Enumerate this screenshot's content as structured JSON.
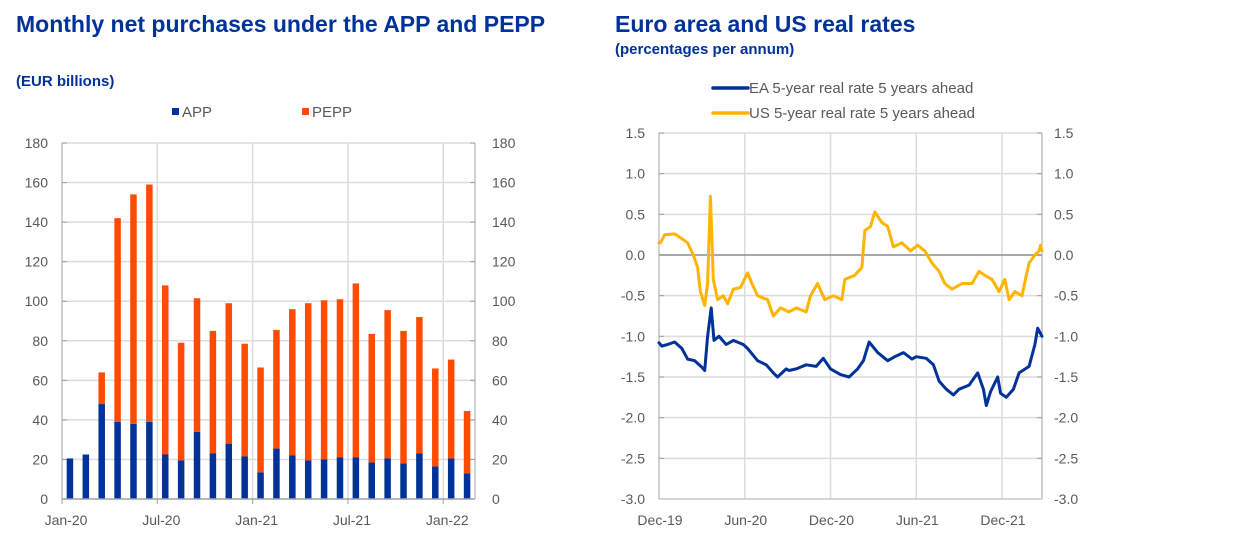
{
  "chart_data": [
    {
      "type": "bar",
      "stacked": true,
      "title": "Monthly net purchases under the APP and PEPP",
      "subtitle": "(EUR billions)",
      "xlabel": "",
      "ylabel": "",
      "ylim": [
        0,
        180
      ],
      "yticks": [
        0,
        20,
        40,
        60,
        80,
        100,
        120,
        140,
        160,
        180
      ],
      "ytick_labels": [
        "0",
        "20",
        "40",
        "60",
        "80",
        "100",
        "120",
        "140",
        "160",
        "180"
      ],
      "secondary_y_axis": true,
      "grid": true,
      "legend_position": "top",
      "categories": [
        "Jan-20",
        "Feb-20",
        "Mar-20",
        "Apr-20",
        "May-20",
        "Jun-20",
        "Jul-20",
        "Aug-20",
        "Sep-20",
        "Oct-20",
        "Nov-20",
        "Dec-20",
        "Jan-21",
        "Feb-21",
        "Mar-21",
        "Apr-21",
        "May-21",
        "Jun-21",
        "Jul-21",
        "Aug-21",
        "Sep-21",
        "Oct-21",
        "Nov-21",
        "Dec-21",
        "Jan-22",
        "Feb-22"
      ],
      "xtick_labels": [
        {
          "index": 0,
          "label": "Jan-20"
        },
        {
          "index": 6,
          "label": "Jul-20"
        },
        {
          "index": 12,
          "label": "Jan-21"
        },
        {
          "index": 18,
          "label": "Jul-21"
        },
        {
          "index": 24,
          "label": "Jan-22"
        }
      ],
      "series": [
        {
          "name": "APP",
          "color": "#003299",
          "values": [
            20.5,
            22.5,
            48,
            39,
            38,
            39,
            22.5,
            19.5,
            34,
            23,
            28,
            21.5,
            13.5,
            25.5,
            22,
            19.5,
            20,
            21,
            21,
            18.5,
            20.5,
            18,
            23,
            16.5,
            20.5,
            13
          ]
        },
        {
          "name": "PEPP",
          "color": "#FF4B00",
          "values": [
            0,
            0,
            16,
            103,
            116,
            120,
            85.5,
            59.5,
            67.5,
            62,
            71,
            57,
            53,
            60,
            74,
            79.5,
            80.5,
            80,
            88,
            65,
            75,
            67,
            69,
            49.5,
            50,
            31.5
          ]
        }
      ]
    },
    {
      "type": "line",
      "title": "Euro area and US real rates",
      "subtitle": "(percentages per annum)",
      "xlabel": "",
      "ylabel": "",
      "ylim": [
        -3.0,
        1.5
      ],
      "yticks": [
        -3.0,
        -2.5,
        -2.0,
        -1.5,
        -1.0,
        -0.5,
        0.0,
        0.5,
        1.0,
        1.5
      ],
      "ytick_labels": [
        "-3.0",
        "-2.5",
        "-2.0",
        "-1.5",
        "-1.0",
        "-0.5",
        "0.0",
        "0.5",
        "1.0",
        "1.5"
      ],
      "secondary_y_axis": true,
      "grid": true,
      "legend_position": "top",
      "x_unit": "months since Dec-19",
      "xlim": [
        0,
        26.8
      ],
      "xtick_labels": [
        {
          "x": 0,
          "label": "Dec-19"
        },
        {
          "x": 6,
          "label": "Jun-20"
        },
        {
          "x": 12,
          "label": "Dec-20"
        },
        {
          "x": 18,
          "label": "Jun-21"
        },
        {
          "x": 24,
          "label": "Dec-21"
        }
      ],
      "series": [
        {
          "name": "EA 5-year real rate 5 years ahead",
          "color": "#003299",
          "points": [
            [
              0,
              -1.08
            ],
            [
              0.2,
              -1.12
            ],
            [
              0.6,
              -1.1
            ],
            [
              1.1,
              -1.07
            ],
            [
              1.6,
              -1.15
            ],
            [
              2.0,
              -1.28
            ],
            [
              2.5,
              -1.3
            ],
            [
              3.0,
              -1.38
            ],
            [
              3.2,
              -1.42
            ],
            [
              3.4,
              -1.0
            ],
            [
              3.65,
              -0.65
            ],
            [
              3.85,
              -1.05
            ],
            [
              4.2,
              -1.0
            ],
            [
              4.7,
              -1.1
            ],
            [
              5.2,
              -1.05
            ],
            [
              5.9,
              -1.1
            ],
            [
              6.2,
              -1.15
            ],
            [
              6.9,
              -1.3
            ],
            [
              7.5,
              -1.35
            ],
            [
              8.0,
              -1.45
            ],
            [
              8.3,
              -1.5
            ],
            [
              8.9,
              -1.4
            ],
            [
              9.1,
              -1.42
            ],
            [
              9.6,
              -1.4
            ],
            [
              10.3,
              -1.35
            ],
            [
              11.0,
              -1.37
            ],
            [
              11.5,
              -1.27
            ],
            [
              12.0,
              -1.4
            ],
            [
              12.7,
              -1.47
            ],
            [
              13.3,
              -1.5
            ],
            [
              13.9,
              -1.4
            ],
            [
              14.3,
              -1.3
            ],
            [
              14.7,
              -1.07
            ],
            [
              15.3,
              -1.2
            ],
            [
              16.0,
              -1.3
            ],
            [
              16.5,
              -1.25
            ],
            [
              17.1,
              -1.2
            ],
            [
              17.7,
              -1.28
            ],
            [
              18.0,
              -1.25
            ],
            [
              18.7,
              -1.27
            ],
            [
              19.2,
              -1.35
            ],
            [
              19.6,
              -1.55
            ],
            [
              20.1,
              -1.65
            ],
            [
              20.6,
              -1.72
            ],
            [
              21.0,
              -1.65
            ],
            [
              21.7,
              -1.6
            ],
            [
              22.3,
              -1.45
            ],
            [
              22.7,
              -1.65
            ],
            [
              22.9,
              -1.85
            ],
            [
              23.2,
              -1.68
            ],
            [
              23.7,
              -1.5
            ],
            [
              23.9,
              -1.7
            ],
            [
              24.3,
              -1.75
            ],
            [
              24.8,
              -1.65
            ],
            [
              25.2,
              -1.45
            ],
            [
              25.9,
              -1.37
            ],
            [
              26.3,
              -1.1
            ],
            [
              26.5,
              -0.9
            ],
            [
              26.8,
              -1.0
            ]
          ]
        },
        {
          "name": "US 5-year real rate 5 years ahead",
          "color": "#FFB400",
          "points": [
            [
              0,
              0.15
            ],
            [
              0.1,
              0.15
            ],
            [
              0.4,
              0.25
            ],
            [
              1.1,
              0.26
            ],
            [
              1.6,
              0.2
            ],
            [
              2.0,
              0.15
            ],
            [
              2.4,
              0.0
            ],
            [
              2.7,
              -0.15
            ],
            [
              2.9,
              -0.45
            ],
            [
              3.2,
              -0.62
            ],
            [
              3.4,
              -0.35
            ],
            [
              3.6,
              0.72
            ],
            [
              3.8,
              -0.3
            ],
            [
              4.1,
              -0.55
            ],
            [
              4.5,
              -0.5
            ],
            [
              4.8,
              -0.6
            ],
            [
              5.2,
              -0.42
            ],
            [
              5.7,
              -0.4
            ],
            [
              6.2,
              -0.22
            ],
            [
              6.5,
              -0.35
            ],
            [
              6.9,
              -0.5
            ],
            [
              7.6,
              -0.55
            ],
            [
              8.0,
              -0.75
            ],
            [
              8.5,
              -0.65
            ],
            [
              9.1,
              -0.7
            ],
            [
              9.6,
              -0.65
            ],
            [
              10.3,
              -0.7
            ],
            [
              10.6,
              -0.5
            ],
            [
              11.1,
              -0.35
            ],
            [
              11.6,
              -0.55
            ],
            [
              12.2,
              -0.5
            ],
            [
              12.8,
              -0.55
            ],
            [
              13.0,
              -0.3
            ],
            [
              13.7,
              -0.25
            ],
            [
              14.2,
              -0.15
            ],
            [
              14.4,
              0.3
            ],
            [
              14.8,
              0.35
            ],
            [
              15.1,
              0.53
            ],
            [
              15.6,
              0.4
            ],
            [
              16.0,
              0.35
            ],
            [
              16.4,
              0.1
            ],
            [
              17.0,
              0.15
            ],
            [
              17.6,
              0.05
            ],
            [
              18.1,
              0.12
            ],
            [
              18.6,
              0.05
            ],
            [
              19.1,
              -0.1
            ],
            [
              19.6,
              -0.2
            ],
            [
              20.0,
              -0.35
            ],
            [
              20.5,
              -0.42
            ],
            [
              21.2,
              -0.35
            ],
            [
              21.9,
              -0.35
            ],
            [
              22.4,
              -0.2
            ],
            [
              22.8,
              -0.25
            ],
            [
              23.3,
              -0.3
            ],
            [
              23.8,
              -0.45
            ],
            [
              24.2,
              -0.3
            ],
            [
              24.5,
              -0.55
            ],
            [
              24.9,
              -0.45
            ],
            [
              25.4,
              -0.5
            ],
            [
              25.7,
              -0.25
            ],
            [
              25.9,
              -0.1
            ],
            [
              26.3,
              0.0
            ],
            [
              26.6,
              0.05
            ],
            [
              26.7,
              0.12
            ],
            [
              26.8,
              0.05
            ]
          ]
        }
      ]
    }
  ]
}
